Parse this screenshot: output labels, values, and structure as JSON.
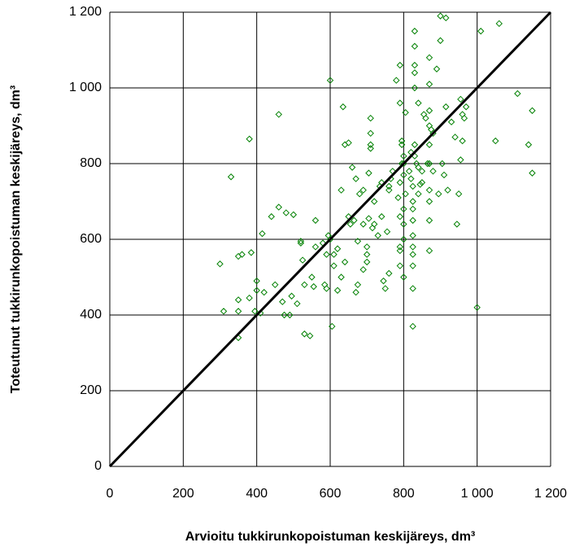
{
  "chart_data": {
    "type": "scatter",
    "x_label": "Arvioitu tukkirunkopoistuman keskijäreys, dm³",
    "y_label": "Toteutunut tukkirunkopoistuman keskijäreys, dm³",
    "color": "#008000",
    "grid": true,
    "xlim": [
      0,
      1200
    ],
    "ylim": [
      0,
      1200
    ],
    "xticks": [
      0,
      200,
      400,
      600,
      800,
      {
        "value": 1000,
        "label": "1 000"
      },
      {
        "value": 1200,
        "label": "1 200"
      }
    ],
    "yticks": [
      0,
      200,
      400,
      600,
      800,
      {
        "value": 1000,
        "label": "1 000"
      },
      {
        "value": 1200,
        "label": "1 200"
      }
    ],
    "reference_line": {
      "x": [
        0,
        1200
      ],
      "y": [
        0,
        1200
      ]
    },
    "x": [
      300,
      310,
      330,
      350,
      350,
      350,
      350,
      360,
      380,
      380,
      385,
      395,
      400,
      400,
      410,
      415,
      420,
      440,
      450,
      460,
      460,
      470,
      475,
      480,
      490,
      495,
      500,
      510,
      520,
      520,
      525,
      530,
      530,
      545,
      550,
      555,
      560,
      560,
      580,
      585,
      590,
      590,
      595,
      600,
      600,
      605,
      610,
      610,
      620,
      620,
      630,
      630,
      635,
      640,
      640,
      650,
      650,
      655,
      660,
      665,
      670,
      670,
      675,
      675,
      680,
      690,
      690,
      690,
      700,
      700,
      700,
      705,
      705,
      710,
      710,
      710,
      710,
      715,
      720,
      720,
      730,
      735,
      740,
      740,
      745,
      750,
      755,
      760,
      760,
      760,
      765,
      770,
      780,
      785,
      790,
      790,
      790,
      790,
      790,
      790,
      790,
      795,
      795,
      795,
      800,
      800,
      800,
      800,
      800,
      800,
      800,
      805,
      805,
      815,
      820,
      820,
      825,
      825,
      825,
      825,
      825,
      825,
      825,
      825,
      825,
      825,
      830,
      830,
      830,
      830,
      830,
      830,
      830,
      835,
      840,
      840,
      840,
      845,
      850,
      850,
      855,
      860,
      865,
      870,
      870,
      870,
      870,
      870,
      870,
      870,
      870,
      870,
      870,
      875,
      880,
      880,
      890,
      895,
      900,
      900,
      905,
      910,
      915,
      915,
      920,
      930,
      940,
      945,
      950,
      955,
      955,
      960,
      960,
      965,
      970,
      1000,
      1010,
      1050,
      1060,
      1110,
      1140,
      1150,
      1150
    ],
    "values": [
      535,
      410,
      765,
      340,
      440,
      410,
      555,
      560,
      865,
      445,
      565,
      410,
      490,
      465,
      405,
      615,
      460,
      660,
      480,
      930,
      685,
      435,
      400,
      670,
      400,
      450,
      665,
      430,
      595,
      590,
      545,
      350,
      480,
      345,
      500,
      475,
      650,
      580,
      590,
      480,
      470,
      560,
      610,
      600,
      1020,
      370,
      560,
      530,
      575,
      465,
      500,
      730,
      950,
      850,
      540,
      660,
      855,
      640,
      790,
      650,
      760,
      460,
      595,
      480,
      720,
      730,
      520,
      640,
      580,
      540,
      560,
      655,
      775,
      920,
      850,
      880,
      840,
      630,
      640,
      700,
      610,
      740,
      660,
      750,
      490,
      470,
      620,
      510,
      730,
      740,
      760,
      780,
      1020,
      710,
      660,
      750,
      960,
      1060,
      530,
      580,
      570,
      860,
      850,
      800,
      800,
      820,
      770,
      680,
      640,
      600,
      500,
      935,
      720,
      780,
      830,
      760,
      740,
      700,
      680,
      650,
      610,
      580,
      560,
      530,
      470,
      370,
      1150,
      1110,
      1060,
      1040,
      1000,
      850,
      820,
      800,
      960,
      790,
      720,
      745,
      780,
      750,
      930,
      920,
      800,
      1080,
      1010,
      940,
      900,
      850,
      800,
      730,
      700,
      650,
      570,
      890,
      880,
      780,
      1050,
      720,
      1190,
      1125,
      800,
      770,
      1185,
      950,
      730,
      910,
      870,
      640,
      720,
      970,
      810,
      930,
      860,
      920,
      950,
      420,
      1150,
      860,
      1170,
      985,
      850,
      940,
      775
    ]
  }
}
